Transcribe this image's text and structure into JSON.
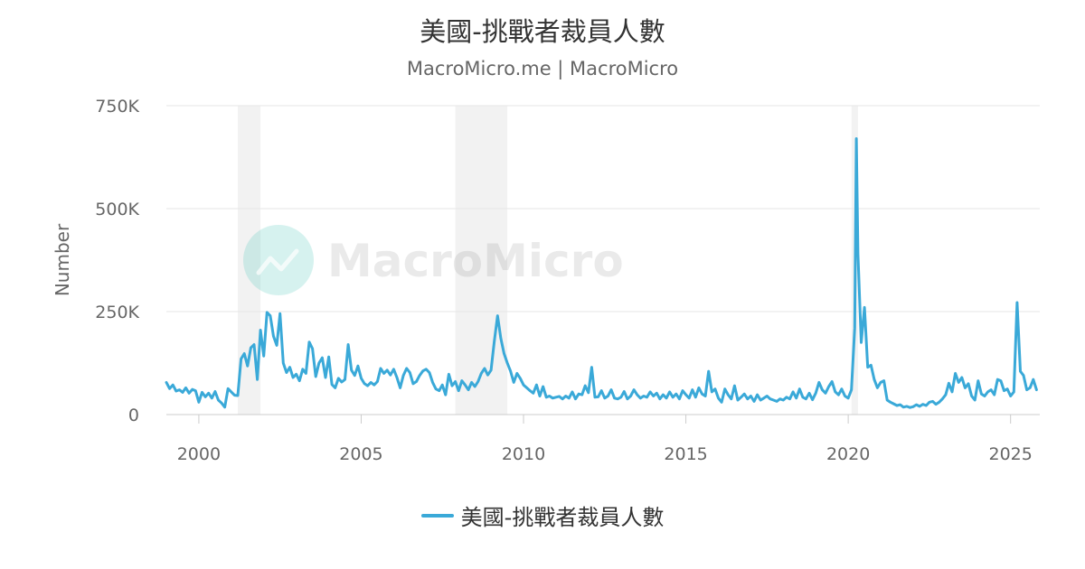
{
  "chart_data": {
    "type": "line",
    "title": "美國-挑戰者裁員人數",
    "subtitle": "MacroMicro.me | MacroMicro",
    "ylabel": "Number",
    "xlabel": "",
    "ylim": [
      0,
      750000
    ],
    "xlim": [
      1999.0,
      2025.9
    ],
    "y_ticks": [
      0,
      250000,
      500000,
      750000
    ],
    "y_tick_labels": [
      "0",
      "250K",
      "500K",
      "750K"
    ],
    "x_ticks": [
      2000,
      2005,
      2010,
      2015,
      2020,
      2025
    ],
    "x_tick_labels": [
      "2000",
      "2005",
      "2010",
      "2015",
      "2020",
      "2025"
    ],
    "grid": true,
    "legend_position": "bottom-center",
    "watermark": "MacroMicro",
    "recession_bands": [
      [
        2001.2,
        2001.9
      ],
      [
        2007.9,
        2009.5
      ],
      [
        2020.1,
        2020.3
      ]
    ],
    "series": [
      {
        "name": "美國-挑戰者裁員人數",
        "color": "#3aa9d8",
        "points": [
          [
            1999.0,
            78000
          ],
          [
            1999.1,
            63000
          ],
          [
            1999.2,
            72000
          ],
          [
            1999.3,
            57000
          ],
          [
            1999.4,
            60000
          ],
          [
            1999.5,
            54000
          ],
          [
            1999.6,
            65000
          ],
          [
            1999.7,
            52000
          ],
          [
            1999.8,
            61000
          ],
          [
            1999.9,
            58000
          ],
          [
            2000.0,
            30000
          ],
          [
            2000.1,
            54000
          ],
          [
            2000.2,
            43000
          ],
          [
            2000.3,
            52000
          ],
          [
            2000.4,
            40000
          ],
          [
            2000.5,
            56000
          ],
          [
            2000.6,
            35000
          ],
          [
            2000.7,
            28000
          ],
          [
            2000.8,
            18000
          ],
          [
            2000.9,
            63000
          ],
          [
            2001.0,
            55000
          ],
          [
            2001.1,
            47000
          ],
          [
            2001.2,
            46000
          ],
          [
            2001.3,
            135000
          ],
          [
            2001.4,
            148000
          ],
          [
            2001.5,
            118000
          ],
          [
            2001.6,
            162000
          ],
          [
            2001.7,
            170000
          ],
          [
            2001.8,
            85000
          ],
          [
            2001.9,
            205000
          ],
          [
            2002.0,
            142000
          ],
          [
            2002.1,
            248000
          ],
          [
            2002.2,
            240000
          ],
          [
            2002.3,
            190000
          ],
          [
            2002.4,
            168000
          ],
          [
            2002.5,
            245000
          ],
          [
            2002.6,
            125000
          ],
          [
            2002.7,
            102000
          ],
          [
            2002.8,
            115000
          ],
          [
            2002.9,
            90000
          ],
          [
            2003.0,
            98000
          ],
          [
            2003.1,
            82000
          ],
          [
            2003.2,
            110000
          ],
          [
            2003.3,
            100000
          ],
          [
            2003.4,
            176000
          ],
          [
            2003.5,
            160000
          ],
          [
            2003.6,
            92000
          ],
          [
            2003.7,
            125000
          ],
          [
            2003.8,
            138000
          ],
          [
            2003.9,
            90000
          ],
          [
            2004.0,
            140000
          ],
          [
            2004.1,
            73000
          ],
          [
            2004.2,
            65000
          ],
          [
            2004.3,
            88000
          ],
          [
            2004.4,
            79000
          ],
          [
            2004.5,
            85000
          ],
          [
            2004.6,
            170000
          ],
          [
            2004.7,
            108000
          ],
          [
            2004.8,
            95000
          ],
          [
            2004.9,
            118000
          ],
          [
            2005.0,
            88000
          ],
          [
            2005.1,
            75000
          ],
          [
            2005.2,
            70000
          ],
          [
            2005.3,
            78000
          ],
          [
            2005.4,
            72000
          ],
          [
            2005.5,
            80000
          ],
          [
            2005.6,
            112000
          ],
          [
            2005.7,
            100000
          ],
          [
            2005.8,
            108000
          ],
          [
            2005.9,
            96000
          ],
          [
            2006.0,
            110000
          ],
          [
            2006.1,
            90000
          ],
          [
            2006.2,
            65000
          ],
          [
            2006.3,
            95000
          ],
          [
            2006.4,
            112000
          ],
          [
            2006.5,
            102000
          ],
          [
            2006.6,
            75000
          ],
          [
            2006.7,
            80000
          ],
          [
            2006.8,
            95000
          ],
          [
            2006.9,
            106000
          ],
          [
            2007.0,
            110000
          ],
          [
            2007.1,
            102000
          ],
          [
            2007.2,
            78000
          ],
          [
            2007.3,
            62000
          ],
          [
            2007.4,
            58000
          ],
          [
            2007.5,
            72000
          ],
          [
            2007.6,
            48000
          ],
          [
            2007.7,
            98000
          ],
          [
            2007.8,
            70000
          ],
          [
            2007.9,
            80000
          ],
          [
            2008.0,
            58000
          ],
          [
            2008.1,
            82000
          ],
          [
            2008.2,
            72000
          ],
          [
            2008.3,
            60000
          ],
          [
            2008.4,
            78000
          ],
          [
            2008.5,
            68000
          ],
          [
            2008.6,
            80000
          ],
          [
            2008.7,
            100000
          ],
          [
            2008.8,
            112000
          ],
          [
            2008.9,
            96000
          ],
          [
            2009.0,
            108000
          ],
          [
            2009.1,
            178000
          ],
          [
            2009.2,
            240000
          ],
          [
            2009.3,
            185000
          ],
          [
            2009.4,
            148000
          ],
          [
            2009.5,
            125000
          ],
          [
            2009.6,
            105000
          ],
          [
            2009.7,
            78000
          ],
          [
            2009.8,
            100000
          ],
          [
            2009.9,
            88000
          ],
          [
            2010.0,
            72000
          ],
          [
            2010.1,
            65000
          ],
          [
            2010.2,
            58000
          ],
          [
            2010.3,
            52000
          ],
          [
            2010.4,
            72000
          ],
          [
            2010.5,
            45000
          ],
          [
            2010.6,
            68000
          ],
          [
            2010.7,
            42000
          ],
          [
            2010.8,
            45000
          ],
          [
            2010.9,
            40000
          ],
          [
            2011.0,
            42000
          ],
          [
            2011.1,
            44000
          ],
          [
            2011.2,
            38000
          ],
          [
            2011.3,
            45000
          ],
          [
            2011.4,
            40000
          ],
          [
            2011.5,
            55000
          ],
          [
            2011.6,
            38000
          ],
          [
            2011.7,
            50000
          ],
          [
            2011.8,
            48000
          ],
          [
            2011.9,
            70000
          ],
          [
            2012.0,
            53000
          ],
          [
            2012.1,
            115000
          ],
          [
            2012.2,
            42000
          ],
          [
            2012.3,
            43000
          ],
          [
            2012.4,
            58000
          ],
          [
            2012.5,
            40000
          ],
          [
            2012.6,
            45000
          ],
          [
            2012.7,
            60000
          ],
          [
            2012.8,
            40000
          ],
          [
            2012.9,
            38000
          ],
          [
            2013.0,
            42000
          ],
          [
            2013.1,
            56000
          ],
          [
            2013.2,
            38000
          ],
          [
            2013.3,
            45000
          ],
          [
            2013.4,
            60000
          ],
          [
            2013.5,
            48000
          ],
          [
            2013.6,
            40000
          ],
          [
            2013.7,
            45000
          ],
          [
            2013.8,
            42000
          ],
          [
            2013.9,
            55000
          ],
          [
            2014.0,
            45000
          ],
          [
            2014.1,
            52000
          ],
          [
            2014.2,
            38000
          ],
          [
            2014.3,
            48000
          ],
          [
            2014.4,
            40000
          ],
          [
            2014.5,
            55000
          ],
          [
            2014.6,
            42000
          ],
          [
            2014.7,
            50000
          ],
          [
            2014.8,
            38000
          ],
          [
            2014.9,
            58000
          ],
          [
            2015.0,
            48000
          ],
          [
            2015.1,
            40000
          ],
          [
            2015.2,
            60000
          ],
          [
            2015.3,
            42000
          ],
          [
            2015.4,
            65000
          ],
          [
            2015.5,
            50000
          ],
          [
            2015.6,
            45000
          ],
          [
            2015.7,
            105000
          ],
          [
            2015.8,
            55000
          ],
          [
            2015.9,
            62000
          ],
          [
            2016.0,
            40000
          ],
          [
            2016.1,
            30000
          ],
          [
            2016.2,
            62000
          ],
          [
            2016.3,
            48000
          ],
          [
            2016.4,
            38000
          ],
          [
            2016.5,
            70000
          ],
          [
            2016.6,
            35000
          ],
          [
            2016.7,
            42000
          ],
          [
            2016.8,
            50000
          ],
          [
            2016.9,
            38000
          ],
          [
            2017.0,
            45000
          ],
          [
            2017.1,
            32000
          ],
          [
            2017.2,
            48000
          ],
          [
            2017.3,
            35000
          ],
          [
            2017.4,
            40000
          ],
          [
            2017.5,
            45000
          ],
          [
            2017.6,
            38000
          ],
          [
            2017.7,
            35000
          ],
          [
            2017.8,
            32000
          ],
          [
            2017.9,
            38000
          ],
          [
            2018.0,
            35000
          ],
          [
            2018.1,
            42000
          ],
          [
            2018.2,
            38000
          ],
          [
            2018.3,
            55000
          ],
          [
            2018.4,
            40000
          ],
          [
            2018.5,
            62000
          ],
          [
            2018.6,
            42000
          ],
          [
            2018.7,
            38000
          ],
          [
            2018.8,
            52000
          ],
          [
            2018.9,
            36000
          ],
          [
            2019.0,
            52000
          ],
          [
            2019.1,
            78000
          ],
          [
            2019.2,
            60000
          ],
          [
            2019.3,
            52000
          ],
          [
            2019.4,
            68000
          ],
          [
            2019.5,
            80000
          ],
          [
            2019.6,
            55000
          ],
          [
            2019.7,
            48000
          ],
          [
            2019.8,
            62000
          ],
          [
            2019.9,
            45000
          ],
          [
            2020.0,
            40000
          ],
          [
            2020.1,
            60000
          ],
          [
            2020.2,
            210000
          ],
          [
            2020.25,
            670000
          ],
          [
            2020.3,
            390000
          ],
          [
            2020.4,
            175000
          ],
          [
            2020.5,
            260000
          ],
          [
            2020.6,
            115000
          ],
          [
            2020.7,
            120000
          ],
          [
            2020.8,
            85000
          ],
          [
            2020.9,
            65000
          ],
          [
            2021.0,
            78000
          ],
          [
            2021.1,
            82000
          ],
          [
            2021.2,
            35000
          ],
          [
            2021.3,
            30000
          ],
          [
            2021.4,
            26000
          ],
          [
            2021.5,
            22000
          ],
          [
            2021.6,
            24000
          ],
          [
            2021.7,
            18000
          ],
          [
            2021.8,
            20000
          ],
          [
            2021.9,
            17000
          ],
          [
            2022.0,
            19000
          ],
          [
            2022.1,
            24000
          ],
          [
            2022.2,
            20000
          ],
          [
            2022.3,
            25000
          ],
          [
            2022.4,
            22000
          ],
          [
            2022.5,
            30000
          ],
          [
            2022.6,
            32000
          ],
          [
            2022.7,
            25000
          ],
          [
            2022.8,
            30000
          ],
          [
            2022.9,
            38000
          ],
          [
            2023.0,
            48000
          ],
          [
            2023.1,
            76000
          ],
          [
            2023.2,
            55000
          ],
          [
            2023.3,
            100000
          ],
          [
            2023.4,
            78000
          ],
          [
            2023.5,
            90000
          ],
          [
            2023.6,
            65000
          ],
          [
            2023.7,
            75000
          ],
          [
            2023.8,
            45000
          ],
          [
            2023.9,
            35000
          ],
          [
            2024.0,
            82000
          ],
          [
            2024.1,
            50000
          ],
          [
            2024.2,
            45000
          ],
          [
            2024.3,
            55000
          ],
          [
            2024.4,
            60000
          ],
          [
            2024.5,
            48000
          ],
          [
            2024.6,
            85000
          ],
          [
            2024.7,
            82000
          ],
          [
            2024.8,
            58000
          ],
          [
            2024.9,
            62000
          ],
          [
            2025.0,
            45000
          ],
          [
            2025.1,
            55000
          ],
          [
            2025.2,
            272000
          ],
          [
            2025.3,
            105000
          ],
          [
            2025.4,
            95000
          ],
          [
            2025.5,
            60000
          ],
          [
            2025.6,
            65000
          ],
          [
            2025.7,
            85000
          ],
          [
            2025.8,
            60000
          ]
        ]
      }
    ]
  }
}
